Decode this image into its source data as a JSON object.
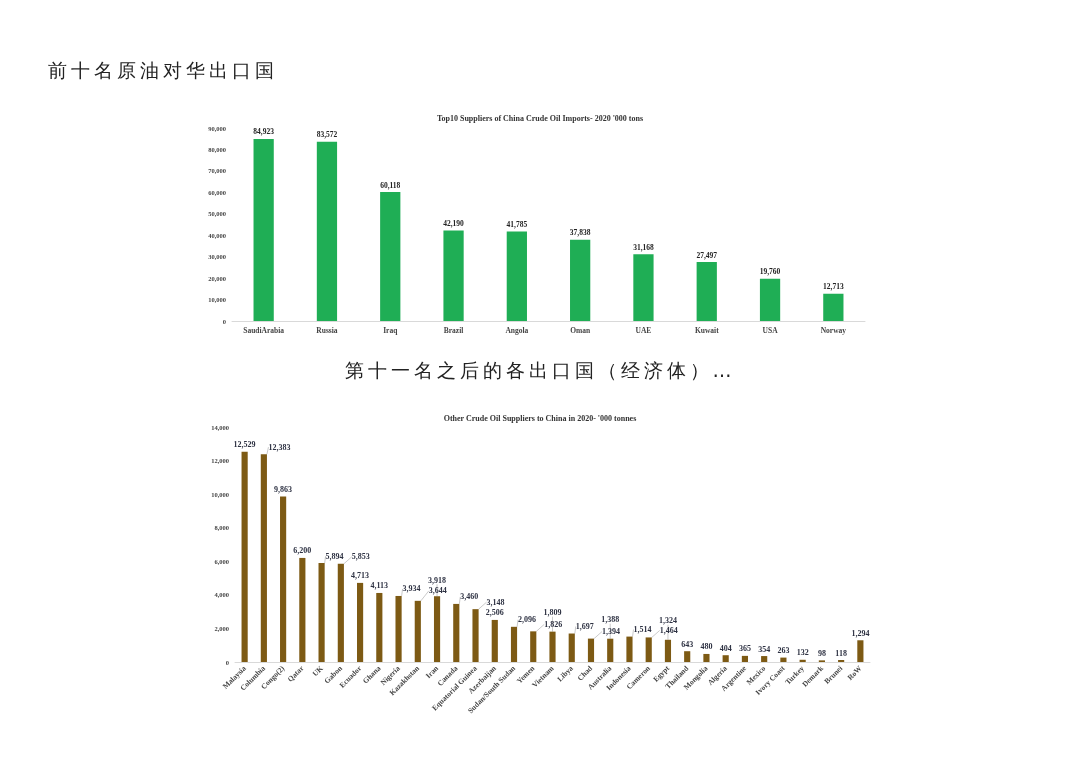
{
  "chart_data": [
    {
      "type": "bar",
      "title": "Top10 Suppliers of China Crude Oil Imports- 2020 '000 tons",
      "annotations": [
        "前十名原油对华出口国"
      ],
      "categories": [
        "SaudiArabia",
        "Russia",
        "Iraq",
        "Brazil",
        "Angola",
        "Oman",
        "UAE",
        "Kuwait",
        "USA",
        "Norway"
      ],
      "values": [
        84923,
        83572,
        60118,
        42190,
        41785,
        37838,
        31168,
        27497,
        19760,
        12713
      ],
      "color": "#1fae55",
      "value_labels": [
        "84,923",
        "83,572",
        "60,118",
        "42,190",
        "41,785",
        "37,838",
        "31,168",
        "27,497",
        "19,760",
        "12,713"
      ],
      "ylim": [
        0,
        90000
      ],
      "yticks": [
        0,
        {
          "value": 10000,
          "label": "10,000"
        },
        {
          "value": 20000,
          "label": "20,000"
        },
        {
          "value": 30000,
          "label": "30,000"
        },
        {
          "value": 40000,
          "label": "40,000"
        },
        {
          "value": 50000,
          "label": "50,000"
        },
        {
          "value": 60000,
          "label": "60,000"
        },
        {
          "value": 70000,
          "label": "70,000"
        },
        {
          "value": 80000,
          "label": "80,000"
        },
        {
          "value": 90000,
          "label": "90,000"
        }
      ]
    },
    {
      "type": "bar",
      "title": "Other Crude Oil Suppliers to China in 2020- '000 tonnes",
      "annotations": [
        "第十一名之后的各出口国（经济体）…"
      ],
      "categories": [
        "Malaysia",
        "Columbia",
        "Congo(2)",
        "Qatar",
        "UK",
        "Gabon",
        "Ecuador",
        "Ghana",
        "Nigeria",
        "Kazakhstan",
        "Iran",
        "Canada",
        "Equatorial Guinea",
        "Azerbaijan",
        "Sudan/South Sudan",
        "Yemen",
        "Vietnam",
        "Libya",
        "Chad",
        "Australia",
        "Indonesia",
        "Cameron",
        "Egypt",
        "Thailand",
        "Mongolia",
        "Algeria",
        "Argentine",
        "Mexico",
        "Ivory Coast",
        "Turkey",
        "Demark",
        "Brunei",
        "RoW"
      ],
      "values": [
        12529,
        12383,
        9863,
        6200,
        5894,
        5853,
        4713,
        4113,
        3934,
        3644,
        3918,
        3460,
        3148,
        2506,
        2096,
        1826,
        1809,
        1697,
        1394,
        1388,
        1514,
        1464,
        1324,
        643,
        480,
        404,
        365,
        354,
        263,
        132,
        98,
        118,
        1294
      ],
      "color": "#7d5a14",
      "value_labels": [
        "12,529",
        "12,383",
        "9,863",
        "6,200",
        "5,894",
        "5,853",
        "4,713",
        "4,113",
        "3,934",
        "3,644",
        "3,918",
        "3,460",
        "3,148",
        "2,506",
        "2,096",
        "1,826",
        "1,809",
        "1,697",
        "1,394",
        "1,388",
        "1,514",
        "1,464",
        "1,324",
        "643",
        "480",
        "404",
        "365",
        "354",
        "263",
        "132",
        "98",
        "118",
        "1,294"
      ],
      "ylim": [
        0,
        14000
      ],
      "yticks": [
        0,
        {
          "value": 2000,
          "label": "2,000"
        },
        {
          "value": 4000,
          "label": "4,000"
        },
        {
          "value": 6000,
          "label": "6,000"
        },
        {
          "value": 8000,
          "label": "8,000"
        },
        {
          "value": 10000,
          "label": "10,000"
        },
        {
          "value": 12000,
          "label": "12,000"
        },
        {
          "value": 14000,
          "label": "14,000"
        }
      ]
    }
  ]
}
